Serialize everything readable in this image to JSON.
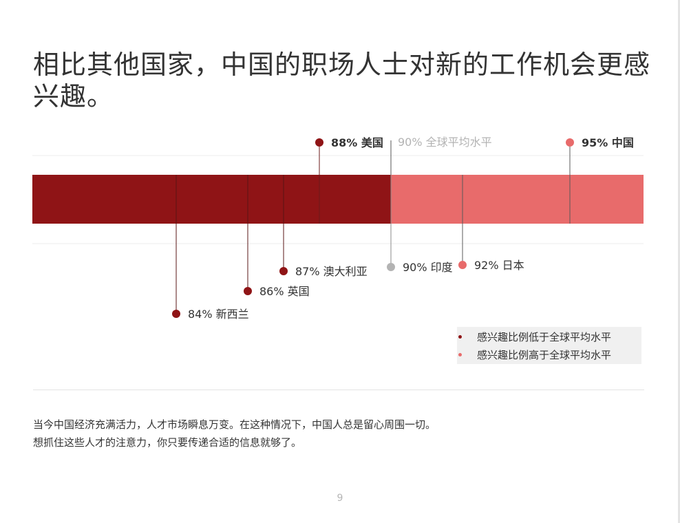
{
  "title": "相比其他国家，中国的职场人士对新的工作机会更感兴趣。",
  "chart_data": {
    "type": "bar",
    "xlim": [
      80,
      96
    ],
    "average": {
      "value": 90,
      "pct": "90%",
      "label": "全球平均水平"
    },
    "points": [
      {
        "country": "新西兰",
        "value": 84,
        "pct": "84%",
        "group": "below",
        "side": "bottom",
        "bold": false
      },
      {
        "country": "英国",
        "value": 86,
        "pct": "86%",
        "group": "below",
        "side": "bottom",
        "bold": false
      },
      {
        "country": "澳大利亚",
        "value": 87,
        "pct": "87%",
        "group": "below",
        "side": "bottom",
        "bold": false
      },
      {
        "country": "美国",
        "value": 88,
        "pct": "88%",
        "group": "below",
        "side": "top",
        "bold": true
      },
      {
        "country": "印度",
        "value": 90,
        "pct": "90%",
        "group": "average",
        "side": "bottom",
        "bold": false
      },
      {
        "country": "日本",
        "value": 92,
        "pct": "92%",
        "group": "above",
        "side": "bottom",
        "bold": false
      },
      {
        "country": "中国",
        "value": 95,
        "pct": "95%",
        "group": "above",
        "side": "top",
        "bold": true
      }
    ],
    "legend": [
      {
        "key": "below",
        "label": "感兴趣比例低于全球平均水平",
        "color": "#8f1416"
      },
      {
        "key": "above",
        "label": "感兴趣比例高于全球平均水平",
        "color": "#e86b6b"
      }
    ],
    "colors": {
      "below": "#8f1416",
      "above": "#e86b6b",
      "average": "#b3b3b3",
      "text": "#333333"
    }
  },
  "caption": {
    "line1": "当今中国经济充满活力，人才市场瞬息万变。在这种情况下，中国人总是留心周围一切。",
    "line2": "想抓住这些人才的注意力，你只要传递合适的信息就够了。"
  },
  "page_number": "9"
}
